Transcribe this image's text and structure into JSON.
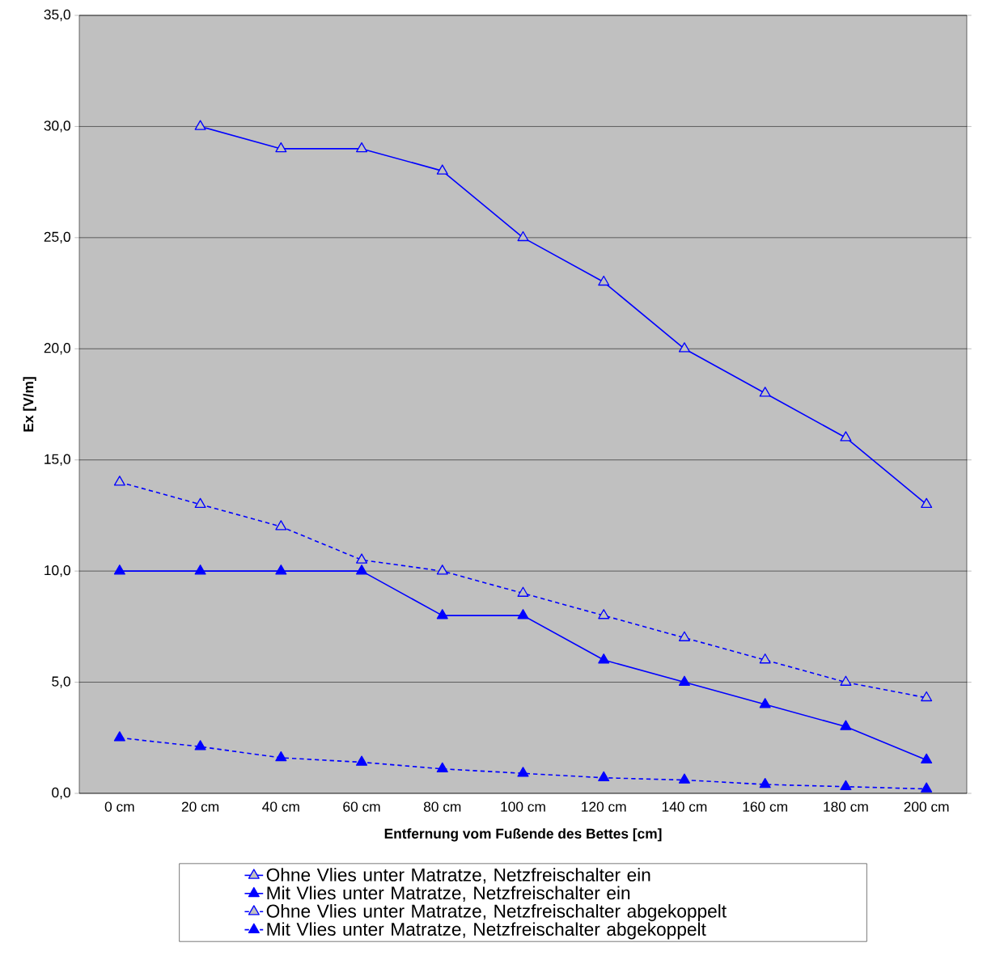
{
  "chart_data": {
    "type": "line",
    "xlabel": "Entfernung vom Fußende des Bettes [cm]",
    "ylabel": "Ex [V/m]",
    "categories": [
      "0 cm",
      "20 cm",
      "40 cm",
      "60 cm",
      "80 cm",
      "100 cm",
      "120 cm",
      "140 cm",
      "160 cm",
      "180 cm",
      "200 cm"
    ],
    "series": [
      {
        "name": "Ohne Vlies unter Matratze, Netzfreischalter ein",
        "color": "#0000ff",
        "line_style": "solid",
        "values": [
          null,
          30,
          29,
          29,
          28,
          25,
          23,
          20,
          18,
          16,
          13
        ]
      },
      {
        "name": "Mit Vlies unter Matratze, Netzfreischalter ein",
        "color": "#0000ff",
        "line_style": "solid",
        "values": [
          10,
          10,
          10,
          10,
          8,
          8,
          6,
          5,
          4,
          3,
          1.5
        ]
      },
      {
        "name": "Ohne Vlies unter Matratze, Netzfreischalter abgekoppelt",
        "color": "#0000ff",
        "line_style": "dashed",
        "values": [
          14,
          13,
          12,
          10.5,
          10,
          9,
          8,
          7,
          6,
          5,
          4.3
        ]
      },
      {
        "name": "Mit Vlies unter Matratze, Netzfreischalter abgekoppelt",
        "color": "#0000ff",
        "line_style": "dashed",
        "values": [
          2.5,
          2.1,
          1.6,
          1.4,
          1.1,
          0.9,
          0.7,
          0.6,
          0.4,
          0.3,
          0.2
        ]
      }
    ],
    "ylim": [
      0,
      35
    ],
    "yticks": [
      {
        "value": 0,
        "label": "0,0"
      },
      {
        "value": 5,
        "label": "5,0"
      },
      {
        "value": 10,
        "label": "10,0"
      },
      {
        "value": 15,
        "label": "15,0"
      },
      {
        "value": 20,
        "label": "20,0"
      },
      {
        "value": 25,
        "label": "25,0"
      },
      {
        "value": 30,
        "label": "30,0"
      },
      {
        "value": 35,
        "label": "35,0"
      }
    ],
    "grid": "y",
    "legend": "bottom",
    "marker": "triangle"
  }
}
